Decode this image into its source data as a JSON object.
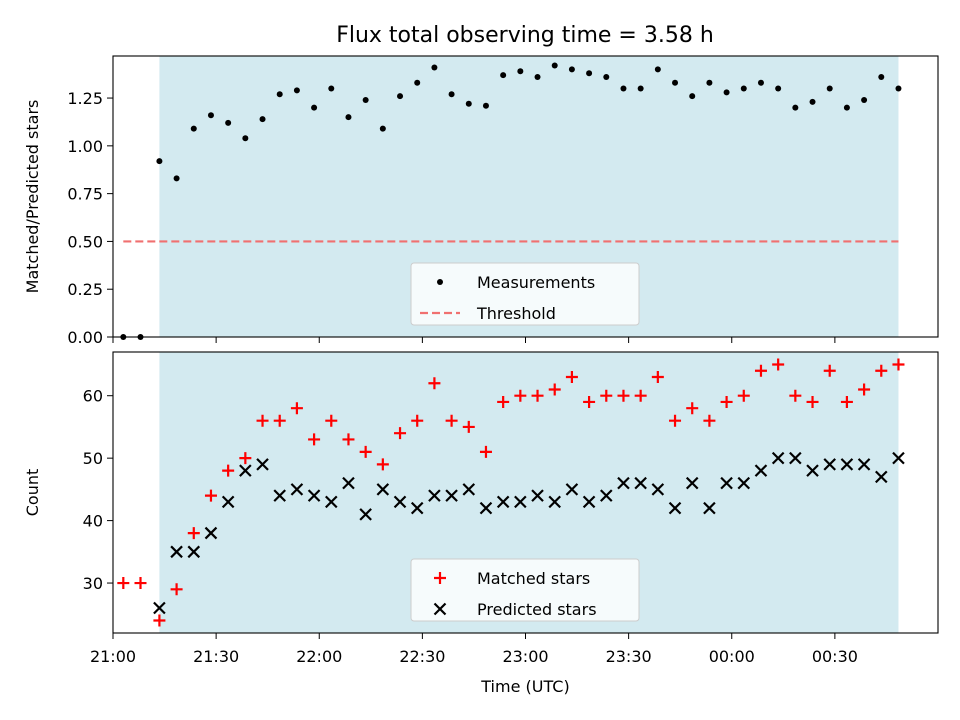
{
  "figure": {
    "title": "Flux total observing time = 3.58 h"
  },
  "chart_data": [
    {
      "type": "scatter",
      "ylabel": "Matched/Predicted stars",
      "xlim": [
        "21:00",
        "01:00"
      ],
      "ylim": [
        0,
        1.47
      ],
      "yticks": [
        "0.00",
        "0.25",
        "0.50",
        "0.75",
        "1.00",
        "1.25"
      ],
      "shaded_region": {
        "from": "21:13.5",
        "to": "00:48.5",
        "color": "#d3eaf0"
      },
      "series": [
        {
          "name": "Measurements",
          "marker": "dot",
          "color": "#000000",
          "x": [
            "21:03",
            "21:08",
            "21:13.5",
            "21:18.5",
            "21:23.5",
            "21:28.5",
            "21:33.5",
            "21:38.5",
            "21:43.5",
            "21:48.5",
            "21:53.5",
            "21:58.5",
            "22:03.5",
            "22:08.5",
            "22:13.5",
            "22:18.5",
            "22:23.5",
            "22:28.5",
            "22:33.5",
            "22:38.5",
            "22:43.5",
            "22:48.5",
            "22:53.5",
            "22:58.5",
            "23:03.5",
            "23:08.5",
            "23:13.5",
            "23:18.5",
            "23:23.5",
            "23:28.5",
            "23:33.5",
            "23:38.5",
            "23:43.5",
            "23:48.5",
            "23:53.5",
            "23:58.5",
            "00:03.5",
            "00:08.5",
            "00:13.5",
            "00:18.5",
            "00:23.5",
            "00:28.5",
            "00:33.5",
            "00:38.5",
            "00:43.5",
            "00:48.5"
          ],
          "y": [
            0.0,
            0.0,
            0.92,
            0.83,
            1.09,
            1.16,
            1.12,
            1.04,
            1.14,
            1.27,
            1.29,
            1.2,
            1.3,
            1.15,
            1.24,
            1.09,
            1.26,
            1.33,
            1.41,
            1.27,
            1.22,
            1.21,
            1.37,
            1.39,
            1.36,
            1.42,
            1.4,
            1.38,
            1.36,
            1.3,
            1.3,
            1.4,
            1.33,
            1.26,
            1.33,
            1.28,
            1.3,
            1.33,
            1.3,
            1.2,
            1.23,
            1.3,
            1.2,
            1.24,
            1.36,
            1.3
          ]
        },
        {
          "name": "Threshold",
          "marker": "dashed-line",
          "color": "#f07070",
          "x": [
            "21:03",
            "00:48.5"
          ],
          "y": [
            0.5,
            0.5
          ]
        }
      ],
      "legend": {
        "position": "lower-center"
      }
    },
    {
      "type": "scatter",
      "xlabel": "Time (UTC)",
      "ylabel": "Count",
      "xlim": [
        "21:00",
        "01:00"
      ],
      "ylim": [
        22,
        67
      ],
      "yticks": [
        "30",
        "40",
        "50",
        "60"
      ],
      "xticks": [
        "21:00",
        "21:30",
        "22:00",
        "22:30",
        "23:00",
        "23:30",
        "00:00",
        "00:30"
      ],
      "shaded_region": {
        "from": "21:13.5",
        "to": "00:48.5",
        "color": "#d3eaf0"
      },
      "series": [
        {
          "name": "Matched stars",
          "marker": "plus",
          "color": "#ff0000",
          "x": [
            "21:03",
            "21:08",
            "21:13.5",
            "21:18.5",
            "21:23.5",
            "21:28.5",
            "21:33.5",
            "21:38.5",
            "21:43.5",
            "21:48.5",
            "21:53.5",
            "21:58.5",
            "22:03.5",
            "22:08.5",
            "22:13.5",
            "22:18.5",
            "22:23.5",
            "22:28.5",
            "22:33.5",
            "22:38.5",
            "22:43.5",
            "22:48.5",
            "22:53.5",
            "22:58.5",
            "23:03.5",
            "23:08.5",
            "23:13.5",
            "23:18.5",
            "23:23.5",
            "23:28.5",
            "23:33.5",
            "23:38.5",
            "23:43.5",
            "23:48.5",
            "23:53.5",
            "23:58.5",
            "00:03.5",
            "00:08.5",
            "00:13.5",
            "00:18.5",
            "00:23.5",
            "00:28.5",
            "00:33.5",
            "00:38.5",
            "00:43.5",
            "00:48.5"
          ],
          "y": [
            30,
            30,
            24,
            29,
            38,
            44,
            48,
            50,
            56,
            56,
            58,
            53,
            56,
            53,
            51,
            49,
            54,
            56,
            62,
            56,
            55,
            51,
            59,
            60,
            60,
            61,
            63,
            59,
            60,
            60,
            60,
            63,
            56,
            58,
            56,
            59,
            60,
            64,
            65,
            60,
            59,
            64,
            59,
            61,
            64,
            65
          ]
        },
        {
          "name": "Predicted stars",
          "marker": "x",
          "color": "#000000",
          "x": [
            "21:13.5",
            "21:18.5",
            "21:23.5",
            "21:28.5",
            "21:33.5",
            "21:38.5",
            "21:43.5",
            "21:48.5",
            "21:53.5",
            "21:58.5",
            "22:03.5",
            "22:08.5",
            "22:13.5",
            "22:18.5",
            "22:23.5",
            "22:28.5",
            "22:33.5",
            "22:38.5",
            "22:43.5",
            "22:48.5",
            "22:53.5",
            "22:58.5",
            "23:03.5",
            "23:08.5",
            "23:13.5",
            "23:18.5",
            "23:23.5",
            "23:28.5",
            "23:33.5",
            "23:38.5",
            "23:43.5",
            "23:48.5",
            "23:53.5",
            "23:58.5",
            "00:03.5",
            "00:08.5",
            "00:13.5",
            "00:18.5",
            "00:23.5",
            "00:28.5",
            "00:33.5",
            "00:38.5",
            "00:43.5",
            "00:48.5"
          ],
          "y": [
            26,
            35,
            35,
            38,
            43,
            48,
            49,
            44,
            45,
            44,
            43,
            46,
            41,
            45,
            43,
            42,
            44,
            44,
            45,
            42,
            43,
            43,
            44,
            43,
            45,
            43,
            44,
            46,
            46,
            45,
            42,
            46,
            42,
            46,
            46,
            48,
            50,
            50,
            48,
            49,
            49,
            49,
            47,
            50
          ]
        }
      ],
      "legend": {
        "position": "lower-center"
      }
    }
  ]
}
